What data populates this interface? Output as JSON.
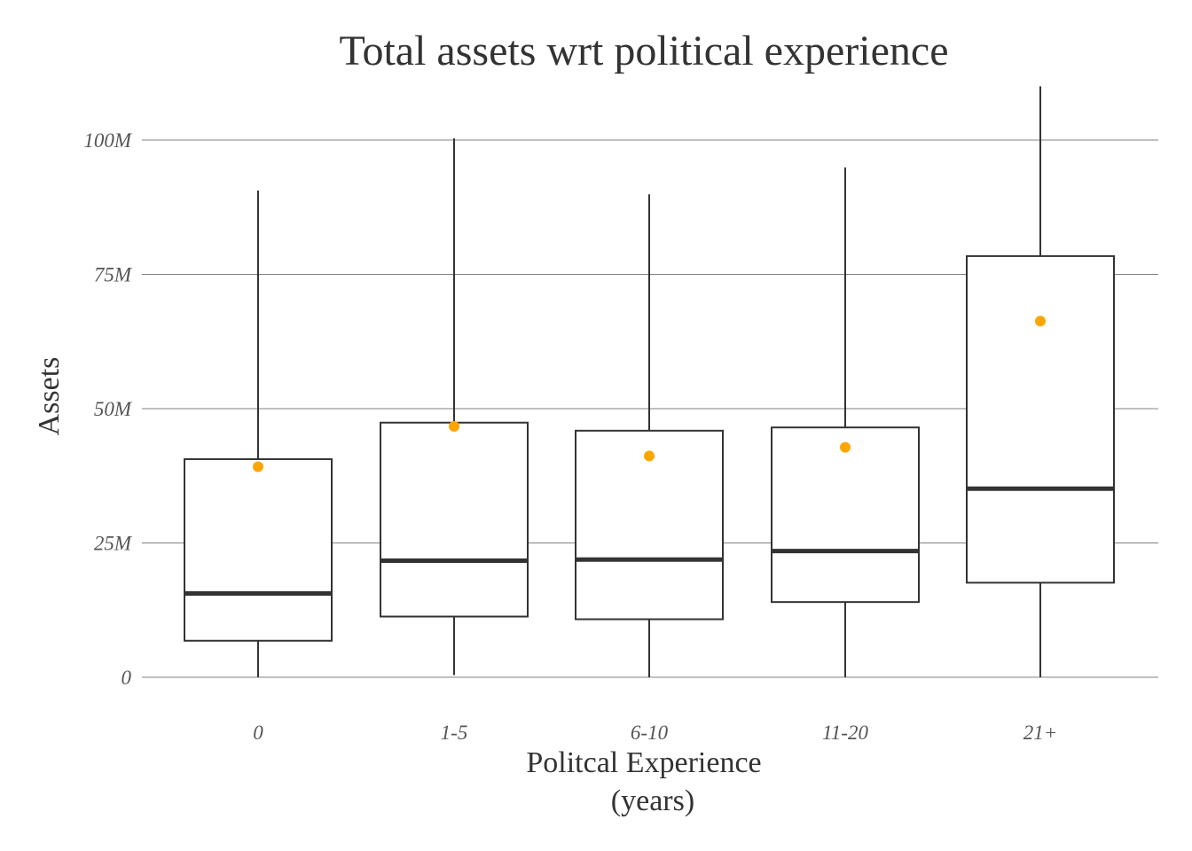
{
  "chart_data": {
    "type": "boxplot",
    "title": "Total assets wrt political experience",
    "xlabel_lines": [
      "Politcal Experience",
      "(years)"
    ],
    "ylabel": "Assets",
    "categories": [
      "0",
      "1-5",
      "6-10",
      "11-20",
      "21+"
    ],
    "y_ticks": [
      {
        "value": 0,
        "label": "0"
      },
      {
        "value": 25,
        "label": "25M"
      },
      {
        "value": 50,
        "label": "50M"
      },
      {
        "value": 75,
        "label": "75M"
      },
      {
        "value": 100,
        "label": "100M"
      }
    ],
    "y_unit": "millions",
    "ylim": [
      -4.8,
      110
    ],
    "grid": true,
    "boxes": [
      {
        "category": "0",
        "whisker_low": 0,
        "q1": 6.8,
        "median": 15.6,
        "q3": 40.6,
        "whisker_high": 90.6,
        "mean": 39.2
      },
      {
        "category": "1-5",
        "whisker_low": 0.4,
        "q1": 11.3,
        "median": 21.7,
        "q3": 47.4,
        "whisker_high": 100.3,
        "mean": 46.7
      },
      {
        "category": "6-10",
        "whisker_low": 0,
        "q1": 10.8,
        "median": 21.9,
        "q3": 45.9,
        "whisker_high": 89.9,
        "mean": 41.2
      },
      {
        "category": "11-20",
        "whisker_low": 0,
        "q1": 14.0,
        "median": 23.5,
        "q3": 46.5,
        "whisker_high": 94.9,
        "mean": 42.8
      },
      {
        "category": "21+",
        "whisker_low": 0,
        "q1": 17.6,
        "median": 35.1,
        "q3": 78.4,
        "whisker_high": 110,
        "mean": 66.3
      }
    ],
    "colors": {
      "mean_point": "#FFA500",
      "box_stroke": "#333333",
      "gridline": "#808080",
      "text": "#333333",
      "tick_text": "#555555"
    }
  }
}
